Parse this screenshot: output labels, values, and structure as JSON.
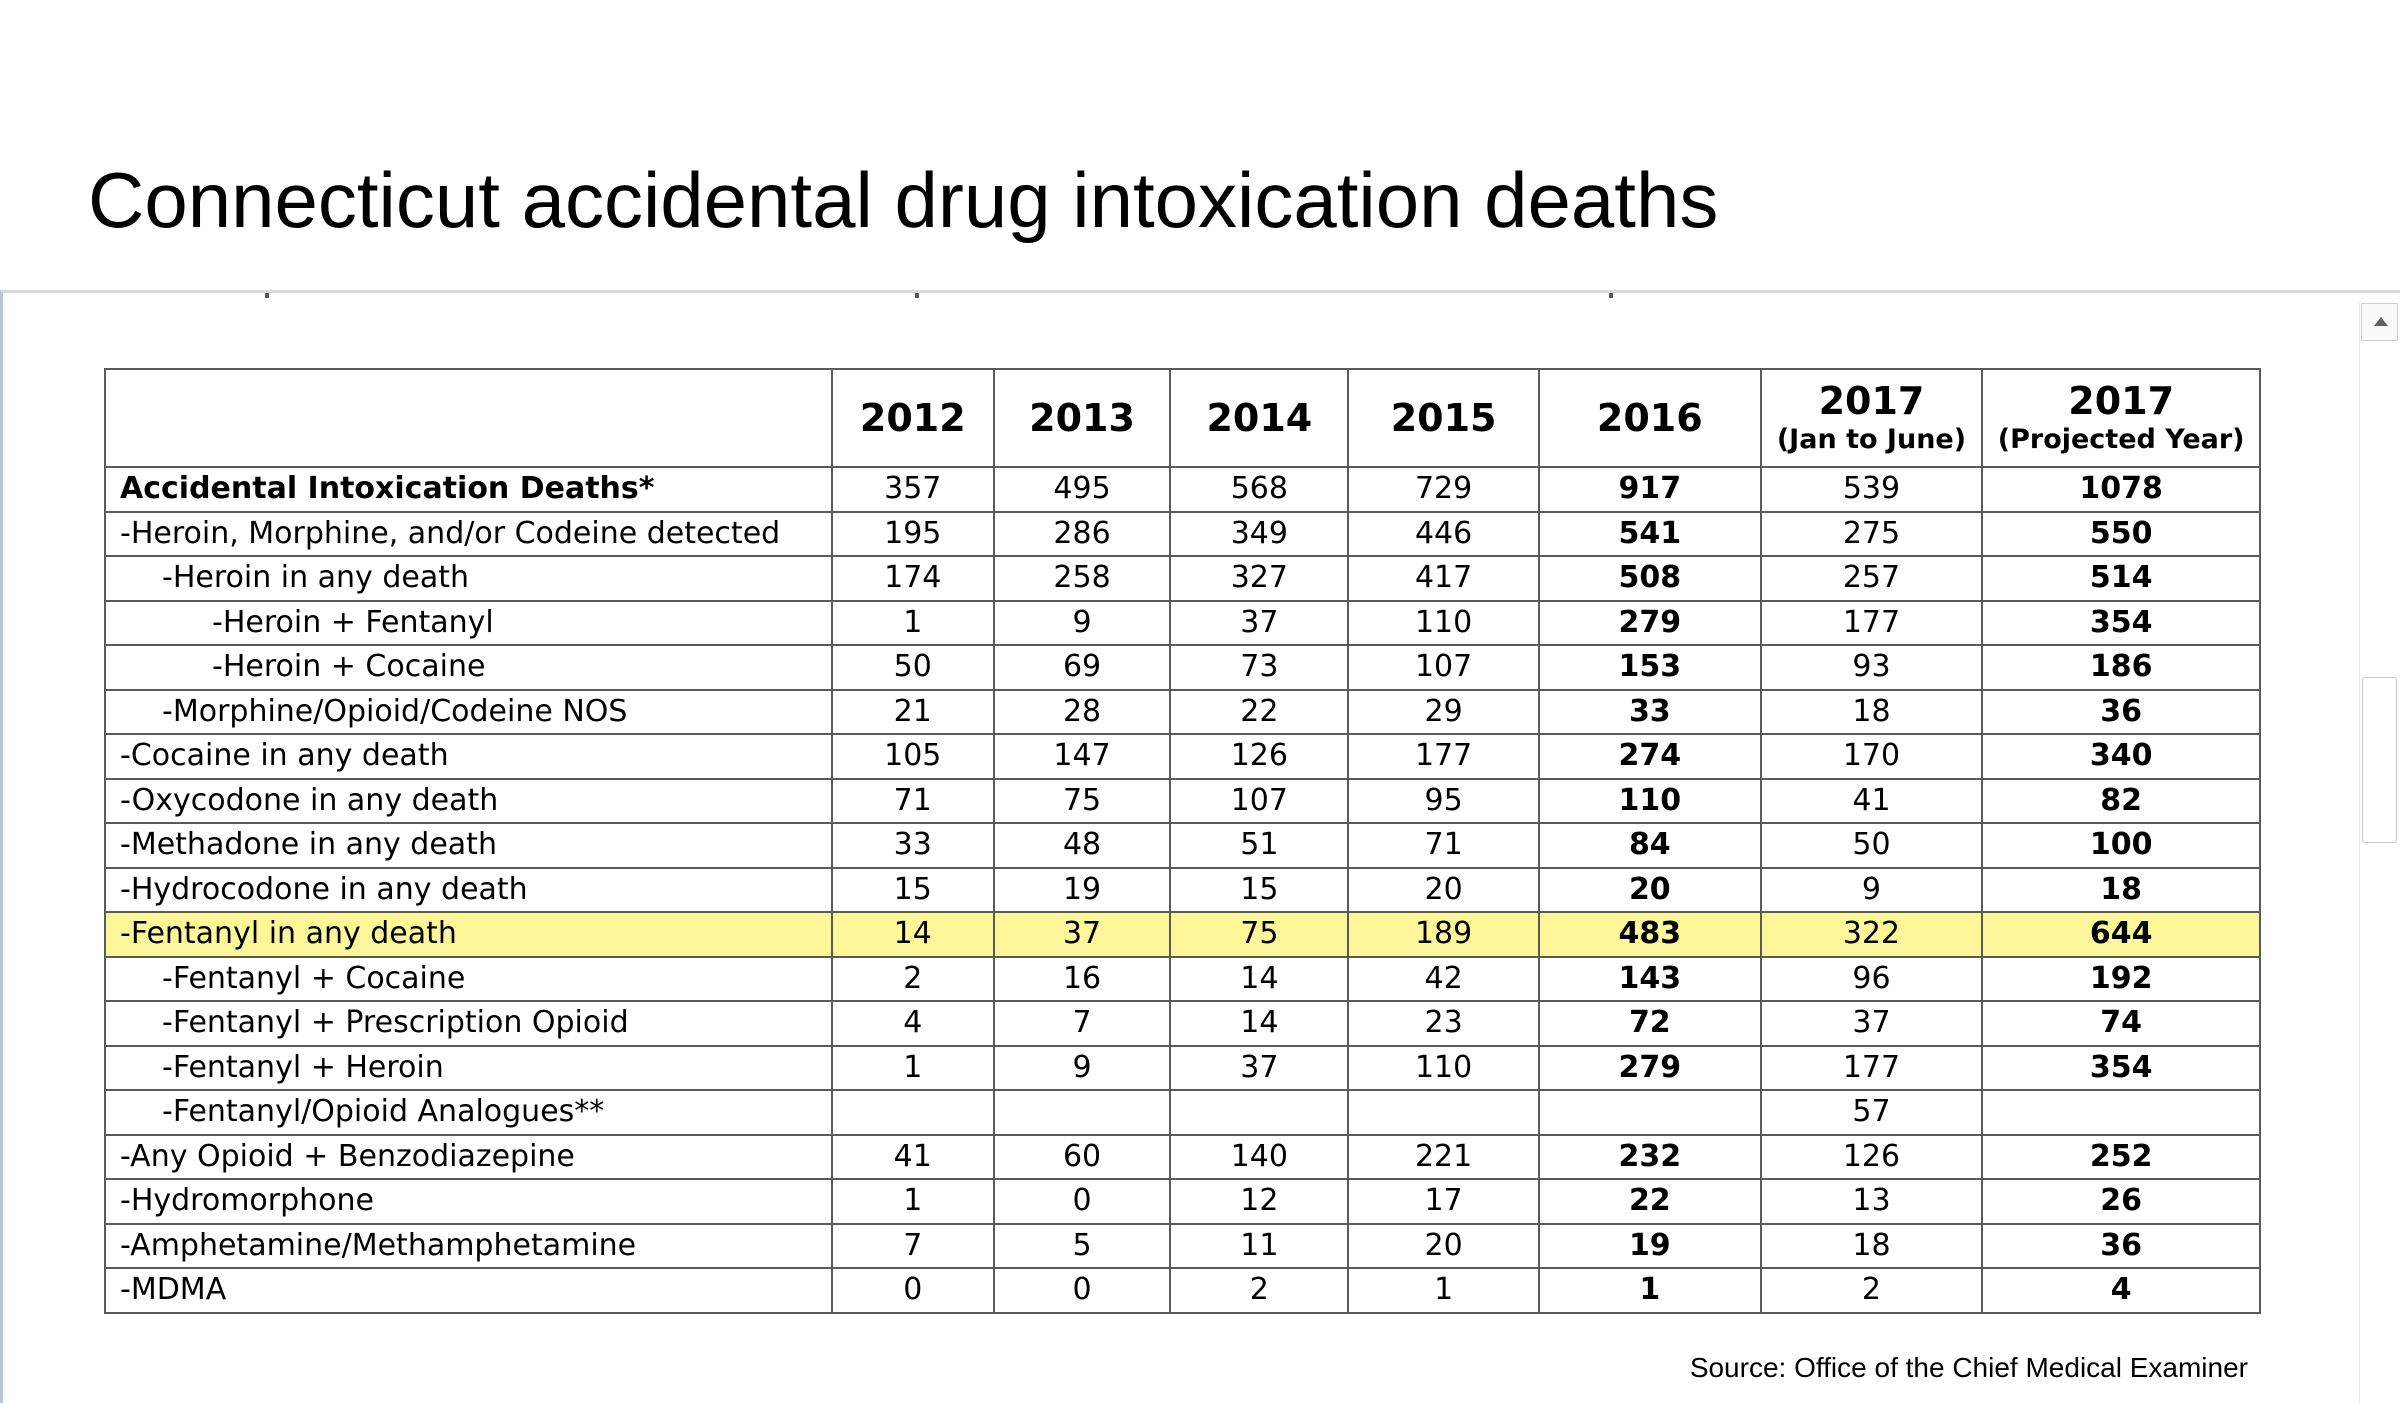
{
  "slide": {
    "title": "Connecticut accidental drug intoxication deaths",
    "source": "Source: Office of the Chief Medical Examiner"
  },
  "table": {
    "columns": [
      {
        "year": "2012",
        "sub": ""
      },
      {
        "year": "2013",
        "sub": ""
      },
      {
        "year": "2014",
        "sub": ""
      },
      {
        "year": "2015",
        "sub": ""
      },
      {
        "year": "2016",
        "sub": ""
      },
      {
        "year": "2017",
        "sub": "(Jan to June)"
      },
      {
        "year": "2017",
        "sub": "(Projected Year)"
      }
    ],
    "rows": [
      {
        "label": "Accidental Intoxication Deaths*",
        "indent": 0,
        "bold": true,
        "values": [
          "357",
          "495",
          "568",
          "729",
          "917",
          "539",
          "1078"
        ]
      },
      {
        "label": "-Heroin, Morphine, and/or Codeine detected",
        "indent": 0,
        "values": [
          "195",
          "286",
          "349",
          "446",
          "541",
          "275",
          "550"
        ]
      },
      {
        "label": "-Heroin in any death",
        "indent": 1,
        "values": [
          "174",
          "258",
          "327",
          "417",
          "508",
          "257",
          "514"
        ]
      },
      {
        "label": "-Heroin + Fentanyl",
        "indent": 2,
        "values": [
          "1",
          "9",
          "37",
          "110",
          "279",
          "177",
          "354"
        ]
      },
      {
        "label": "-Heroin + Cocaine",
        "indent": 2,
        "values": [
          "50",
          "69",
          "73",
          "107",
          "153",
          "93",
          "186"
        ]
      },
      {
        "label": "-Morphine/Opioid/Codeine NOS",
        "indent": 1,
        "values": [
          "21",
          "28",
          "22",
          "29",
          "33",
          "18",
          "36"
        ]
      },
      {
        "label": "-Cocaine in any death",
        "indent": 0,
        "values": [
          "105",
          "147",
          "126",
          "177",
          "274",
          "170",
          "340"
        ]
      },
      {
        "label": "-Oxycodone in any death",
        "indent": 0,
        "values": [
          "71",
          "75",
          "107",
          "95",
          "110",
          "41",
          "82"
        ]
      },
      {
        "label": "-Methadone in any death",
        "indent": 0,
        "values": [
          "33",
          "48",
          "51",
          "71",
          "84",
          "50",
          "100"
        ]
      },
      {
        "label": "-Hydrocodone in any death",
        "indent": 0,
        "values": [
          "15",
          "19",
          "15",
          "20",
          "20",
          "9",
          "18"
        ]
      },
      {
        "label": "-Fentanyl in any death",
        "indent": 0,
        "highlight": true,
        "values": [
          "14",
          "37",
          "75",
          "189",
          "483",
          "322",
          "644"
        ]
      },
      {
        "label": "-Fentanyl + Cocaine",
        "indent": 1,
        "values": [
          "2",
          "16",
          "14",
          "42",
          "143",
          "96",
          "192"
        ]
      },
      {
        "label": "-Fentanyl + Prescription Opioid",
        "indent": 1,
        "values": [
          "4",
          "7",
          "14",
          "23",
          "72",
          "37",
          "74"
        ]
      },
      {
        "label": "-Fentanyl + Heroin",
        "indent": 1,
        "values": [
          "1",
          "9",
          "37",
          "110",
          "279",
          "177",
          "354"
        ]
      },
      {
        "label": "-Fentanyl/Opioid Analogues**",
        "indent": 1,
        "values": [
          "",
          "",
          "",
          "",
          "",
          "57",
          ""
        ]
      },
      {
        "label": "-Any Opioid + Benzodiazepine",
        "indent": 0,
        "values": [
          "41",
          "60",
          "140",
          "221",
          "232",
          "126",
          "252"
        ]
      },
      {
        "label": "-Hydromorphone",
        "indent": 0,
        "values": [
          "1",
          "0",
          "12",
          "17",
          "22",
          "13",
          "26"
        ]
      },
      {
        "label": "-Amphetamine/Methamphetamine",
        "indent": 0,
        "values": [
          "7",
          "5",
          "11",
          "20",
          "19",
          "18",
          "36"
        ]
      },
      {
        "label": "-MDMA",
        "indent": 0,
        "values": [
          "0",
          "0",
          "2",
          "1",
          "1",
          "2",
          "4"
        ]
      }
    ],
    "bold_columns": [
      4,
      6
    ],
    "highlight_color": "#fdf799"
  }
}
